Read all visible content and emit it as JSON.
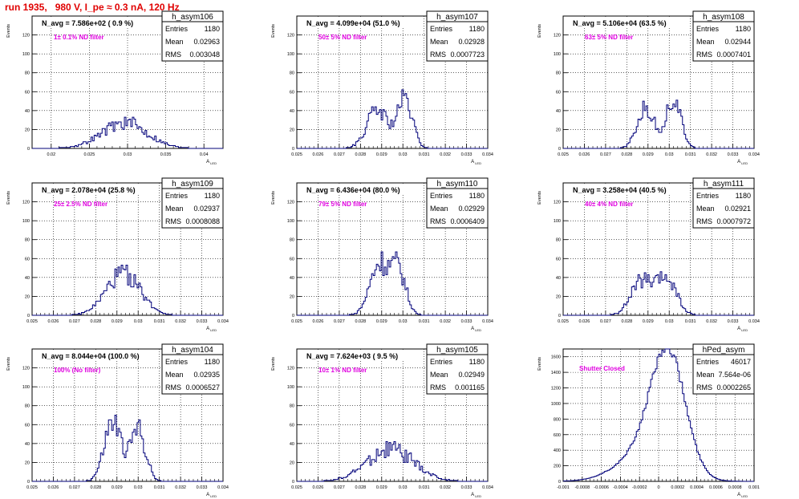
{
  "run_title": "run 1935,   980 V, I_pe ≈ 0.3 nA, 120 Hz",
  "colors": {
    "title": "#e00000",
    "label": "#e000e0",
    "histogram": "#00007a",
    "grid": "#000000"
  },
  "chart_data": [
    {
      "type": "histogram",
      "name": "h_asym106",
      "nlabel": "N_avg = 7.586e+02 ( 0.9 %)",
      "filter": "1± 0.1% ND filter",
      "ylabel": "Events",
      "xlabel": "A_LED",
      "stats": [
        [
          "Entries",
          "1180"
        ],
        [
          "Mean",
          "0.02963"
        ],
        [
          "RMS",
          "0.003048"
        ]
      ],
      "ylim": [
        0,
        140
      ],
      "yticks": [
        0,
        20,
        40,
        60,
        80,
        100,
        120
      ],
      "xlim": [
        0.0175,
        0.0425
      ],
      "xticks": [
        0.02,
        0.025,
        0.03,
        0.035,
        0.04
      ],
      "xticklabels": [
        "0.02",
        "0.025",
        "0.03",
        "0.035",
        "0.04"
      ],
      "peaks": [
        {
          "mu": 0.0296,
          "sigma": 0.003,
          "amp": 27
        }
      ],
      "noise": 0.3,
      "seed": 106
    },
    {
      "type": "histogram",
      "name": "h_asym107",
      "nlabel": "N_avg = 4.099e+04 (51.0 %)",
      "filter": "50± 5% ND filter",
      "ylabel": "Events",
      "xlabel": "A_LED",
      "stats": [
        [
          "Entries",
          "1180"
        ],
        [
          "Mean",
          "0.02928"
        ],
        [
          "RMS",
          "0.0007723"
        ]
      ],
      "ylim": [
        0,
        140
      ],
      "yticks": [
        0,
        20,
        40,
        60,
        80,
        100,
        120
      ],
      "xlim": [
        0.025,
        0.034
      ],
      "xticks": [
        0.025,
        0.026,
        0.027,
        0.028,
        0.029,
        0.03,
        0.031,
        0.032,
        0.033,
        0.034
      ],
      "xticklabels": [
        "0.025",
        "0.026",
        "0.027",
        "0.028",
        "0.029",
        "0.03",
        "0.031",
        "0.032",
        "0.033",
        "0.034"
      ],
      "peaks": [
        {
          "mu": 0.0288,
          "sigma": 0.0005,
          "amp": 40
        },
        {
          "mu": 0.0301,
          "sigma": 0.00035,
          "amp": 50
        }
      ],
      "noise": 0.25,
      "seed": 107
    },
    {
      "type": "histogram",
      "name": "h_asym108",
      "nlabel": "N_avg = 5.106e+04 (63.5 %)",
      "filter": "63± 5% ND filter",
      "ylabel": "Events",
      "xlabel": "A_LED",
      "stats": [
        [
          "Entries",
          "1180"
        ],
        [
          "Mean",
          "0.02944"
        ],
        [
          "RMS",
          "0.0007401"
        ]
      ],
      "ylim": [
        0,
        140
      ],
      "yticks": [
        0,
        20,
        40,
        60,
        80,
        100,
        120
      ],
      "xlim": [
        0.025,
        0.034
      ],
      "xticks": [
        0.025,
        0.026,
        0.027,
        0.028,
        0.029,
        0.03,
        0.031,
        0.032,
        0.033,
        0.034
      ],
      "xticklabels": [
        "0.025",
        "0.026",
        "0.027",
        "0.028",
        "0.029",
        "0.03",
        "0.031",
        "0.032",
        "0.033",
        "0.034"
      ],
      "peaks": [
        {
          "mu": 0.0289,
          "sigma": 0.0004,
          "amp": 42
        },
        {
          "mu": 0.0302,
          "sigma": 0.00035,
          "amp": 52
        }
      ],
      "noise": 0.25,
      "seed": 108
    },
    {
      "type": "histogram",
      "name": "h_asym109",
      "nlabel": "N_avg = 2.078e+04 (25.8 %)",
      "filter": "25± 2.5% ND filter",
      "ylabel": "Events",
      "xlabel": "A_LED",
      "stats": [
        [
          "Entries",
          "1180"
        ],
        [
          "Mean",
          "0.02937"
        ],
        [
          "RMS",
          "0.0008088"
        ]
      ],
      "ylim": [
        0,
        140
      ],
      "yticks": [
        0,
        20,
        40,
        60,
        80,
        100,
        120
      ],
      "xlim": [
        0.025,
        0.034
      ],
      "xticks": [
        0.025,
        0.026,
        0.027,
        0.028,
        0.029,
        0.03,
        0.031,
        0.032,
        0.033,
        0.034
      ],
      "xticklabels": [
        "0.025",
        "0.026",
        "0.027",
        "0.028",
        "0.029",
        "0.03",
        "0.031",
        "0.032",
        "0.033",
        "0.034"
      ],
      "peaks": [
        {
          "mu": 0.0293,
          "sigma": 0.0008,
          "amp": 44
        }
      ],
      "noise": 0.25,
      "seed": 109
    },
    {
      "type": "histogram",
      "name": "h_asym110",
      "nlabel": "N_avg = 6.436e+04 (80.0 %)",
      "filter": "79± 5% ND filter",
      "ylabel": "Events",
      "xlabel": "A_LED",
      "stats": [
        [
          "Entries",
          "1180"
        ],
        [
          "Mean",
          "0.02929"
        ],
        [
          "RMS",
          "0.0006409"
        ]
      ],
      "ylim": [
        0,
        140
      ],
      "yticks": [
        0,
        20,
        40,
        60,
        80,
        100,
        120
      ],
      "xlim": [
        0.025,
        0.034
      ],
      "xticks": [
        0.025,
        0.026,
        0.027,
        0.028,
        0.029,
        0.03,
        0.031,
        0.032,
        0.033,
        0.034
      ],
      "xticklabels": [
        "0.025",
        "0.026",
        "0.027",
        "0.028",
        "0.029",
        "0.03",
        "0.031",
        "0.032",
        "0.033",
        "0.034"
      ],
      "peaks": [
        {
          "mu": 0.0289,
          "sigma": 0.00045,
          "amp": 55
        },
        {
          "mu": 0.0298,
          "sigma": 0.00035,
          "amp": 45
        }
      ],
      "noise": 0.25,
      "seed": 110
    },
    {
      "type": "histogram",
      "name": "h_asym111",
      "nlabel": "N_avg = 3.258e+04 (40.5 %)",
      "filter": "40± 4% ND filter",
      "ylabel": "Events",
      "xlabel": "A_LED",
      "stats": [
        [
          "Entries",
          "1180"
        ],
        [
          "Mean",
          "0.02921"
        ],
        [
          "RMS",
          "0.0007972"
        ]
      ],
      "ylim": [
        0,
        140
      ],
      "yticks": [
        0,
        20,
        40,
        60,
        80,
        100,
        120
      ],
      "xlim": [
        0.025,
        0.034
      ],
      "xticks": [
        0.025,
        0.026,
        0.027,
        0.028,
        0.029,
        0.03,
        0.031,
        0.032,
        0.033,
        0.034
      ],
      "xticklabels": [
        "0.025",
        "0.026",
        "0.027",
        "0.028",
        "0.029",
        "0.03",
        "0.031",
        "0.032",
        "0.033",
        "0.034"
      ],
      "peaks": [
        {
          "mu": 0.0287,
          "sigma": 0.0005,
          "amp": 36
        },
        {
          "mu": 0.0299,
          "sigma": 0.00045,
          "amp": 38
        }
      ],
      "noise": 0.25,
      "seed": 111
    },
    {
      "type": "histogram",
      "name": "h_asym104",
      "nlabel": "N_avg = 8.044e+04 (100.0 %)",
      "filter": "100% (No filter)",
      "ylabel": "Events",
      "xlabel": "A_LED",
      "stats": [
        [
          "Entries",
          "1180"
        ],
        [
          "Mean",
          "0.02935"
        ],
        [
          "RMS",
          "0.0006527"
        ]
      ],
      "ylim": [
        0,
        140
      ],
      "yticks": [
        0,
        20,
        40,
        60,
        80,
        100,
        120
      ],
      "xlim": [
        0.025,
        0.034
      ],
      "xticks": [
        0.025,
        0.026,
        0.027,
        0.028,
        0.029,
        0.03,
        0.031,
        0.032,
        0.033,
        0.034
      ],
      "xticklabels": [
        "0.025",
        "0.026",
        "0.027",
        "0.028",
        "0.029",
        "0.03",
        "0.031",
        "0.032",
        "0.033",
        "0.034"
      ],
      "peaks": [
        {
          "mu": 0.0288,
          "sigma": 0.0004,
          "amp": 62
        },
        {
          "mu": 0.03,
          "sigma": 0.00035,
          "amp": 55
        }
      ],
      "noise": 0.25,
      "seed": 104
    },
    {
      "type": "histogram",
      "name": "h_asym105",
      "nlabel": "N_avg = 7.624e+03 ( 9.5 %)",
      "filter": "10± 1% ND filter",
      "ylabel": "Events",
      "xlabel": "A_LED",
      "stats": [
        [
          "Entries",
          "1180"
        ],
        [
          "Mean",
          "0.02949"
        ],
        [
          "RMS",
          "0.001165"
        ]
      ],
      "ylim": [
        0,
        140
      ],
      "yticks": [
        0,
        20,
        40,
        60,
        80,
        100,
        120
      ],
      "xlim": [
        0.025,
        0.034
      ],
      "xticks": [
        0.025,
        0.026,
        0.027,
        0.028,
        0.029,
        0.03,
        0.031,
        0.032,
        0.033,
        0.034
      ],
      "xticklabels": [
        "0.025",
        "0.026",
        "0.027",
        "0.028",
        "0.029",
        "0.03",
        "0.031",
        "0.032",
        "0.033",
        "0.034"
      ],
      "peaks": [
        {
          "mu": 0.0294,
          "sigma": 0.0011,
          "amp": 34
        }
      ],
      "noise": 0.3,
      "seed": 105
    },
    {
      "type": "histogram",
      "name": "hPed_asym",
      "nlabel": "",
      "filter": "Shutter Closed",
      "ylabel": "Events",
      "xlabel": "A_LED",
      "stats": [
        [
          "Entries",
          "46017"
        ],
        [
          "Mean",
          "7.564e-06"
        ],
        [
          "RMS",
          "0.0002265"
        ]
      ],
      "ylim": [
        0,
        1700
      ],
      "yticks": [
        0,
        200,
        400,
        600,
        800,
        1000,
        1200,
        1400,
        1600
      ],
      "xlim": [
        -0.001,
        0.001
      ],
      "xticks": [
        -0.001,
        -0.0008,
        -0.0006,
        -0.0004,
        -0.0002,
        0,
        0.0002,
        0.0004,
        0.0006,
        0.0008,
        0.001
      ],
      "xticklabels": [
        "-0.001",
        "-0.0008",
        "-0.0006",
        "-0.0004",
        "-0.0002",
        "0",
        "0.0002",
        "0.0004",
        "0.0006",
        "0.0008",
        "0.001"
      ],
      "peaks": [
        {
          "mu": 0.0001,
          "sigma": 0.00018,
          "amp": 1500
        },
        {
          "mu": -0.00015,
          "sigma": 0.00028,
          "amp": 350
        }
      ],
      "noise": 0.04,
      "seed": 112
    }
  ]
}
